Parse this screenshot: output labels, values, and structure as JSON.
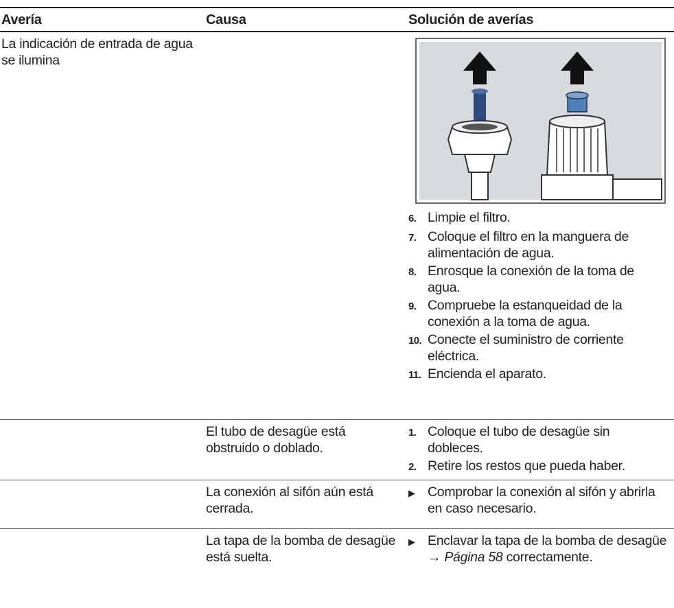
{
  "table": {
    "header": [
      "Avería",
      "Causa",
      "Solución de averías"
    ],
    "rows": [
      {
        "fault": "La indicación de entrada de agua se ilumina",
        "steps": [
          {
            "number": "6.",
            "text": "Limpie el filtro."
          },
          {
            "number": "7.",
            "text": "Coloque el filtro en la manguera de alimentación de agua."
          },
          {
            "number": "8.",
            "text": "Enrosque la conexión de la toma de agua."
          },
          {
            "number": "9.",
            "text": "Compruebe la estanqueidad de la conexión a la toma de agua."
          },
          {
            "number": "10.",
            "text": "Conecte el suministro de corriente eléctrica."
          },
          {
            "number": "11.",
            "text": "Encienda el aparato."
          }
        ]
      },
      {
        "cause": "El tubo de desagüe está obstruido o doblado.",
        "steps": [
          {
            "number": "1.",
            "text": "Coloque el tubo de desagüe sin dobleces."
          },
          {
            "number": "2.",
            "text": "Retire los restos que pueda haber."
          }
        ]
      },
      {
        "cause": "La conexión al sifón aún está cerrada.",
        "action": "Comprobar la conexión al sifón y abrirla en caso necesario."
      },
      {
        "cause": "La tapa de la bomba de desagüe está suelta.",
        "action": {
          "before": "Enclavar la tapa de la bomba de desagüe →",
          "link": "Página 58",
          "after": "correctamente."
        }
      }
    ]
  }
}
